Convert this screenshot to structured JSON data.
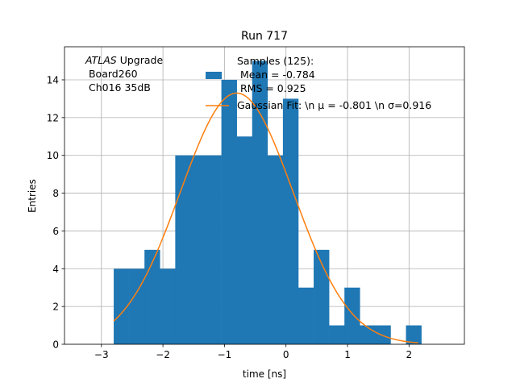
{
  "chart_data": {
    "type": "bar",
    "title": "Run 717",
    "xlabel": "time [ns]",
    "ylabel": "Entries",
    "xlim": [
      -3.6,
      2.9
    ],
    "ylim": [
      0,
      15.75
    ],
    "grid": true,
    "xticks": [
      -3,
      -2,
      -1,
      0,
      1,
      2
    ],
    "xtick_labels": [
      "−3",
      "−2",
      "−1",
      "0",
      "1",
      "2"
    ],
    "yticks": [
      0,
      2,
      4,
      6,
      8,
      10,
      12,
      14
    ],
    "ytick_labels": [
      "0",
      "2",
      "4",
      "6",
      "8",
      "10",
      "12",
      "14"
    ],
    "bins": {
      "edges": [
        -2.8,
        -2.55,
        -2.3,
        -2.05,
        -1.8,
        -1.55,
        -1.3,
        -1.05,
        -0.8,
        -0.55,
        -0.3,
        -0.05,
        0.2,
        0.45,
        0.7,
        0.95,
        1.2,
        1.45,
        1.7,
        1.95,
        2.2
      ],
      "counts": [
        4,
        4,
        5,
        4,
        10,
        10,
        10,
        14,
        11,
        15,
        10,
        13,
        3,
        5,
        1,
        3,
        1,
        1,
        0,
        1
      ]
    },
    "fit": {
      "name": "Gaussian Fit: \\n μ = -0.801 \\n σ=0.916",
      "mu": -0.801,
      "sigma": 0.916,
      "x_range": [
        -2.8,
        2.15
      ],
      "peak": 13.3
    },
    "colors": {
      "bars": "#1f77b4",
      "fit": "#ff7f0e",
      "grid": "#b0b0b0"
    },
    "annotation": {
      "label_italic": "ATLAS",
      "label_rest": " Upgrade",
      "line2": " Board260",
      "line3": " Ch016 35dB"
    },
    "stats": {
      "line1": "Samples (125):",
      "line2": " Mean = -0.784",
      "line3": " RMS = 0.925"
    },
    "legend_placement": "top-center"
  }
}
